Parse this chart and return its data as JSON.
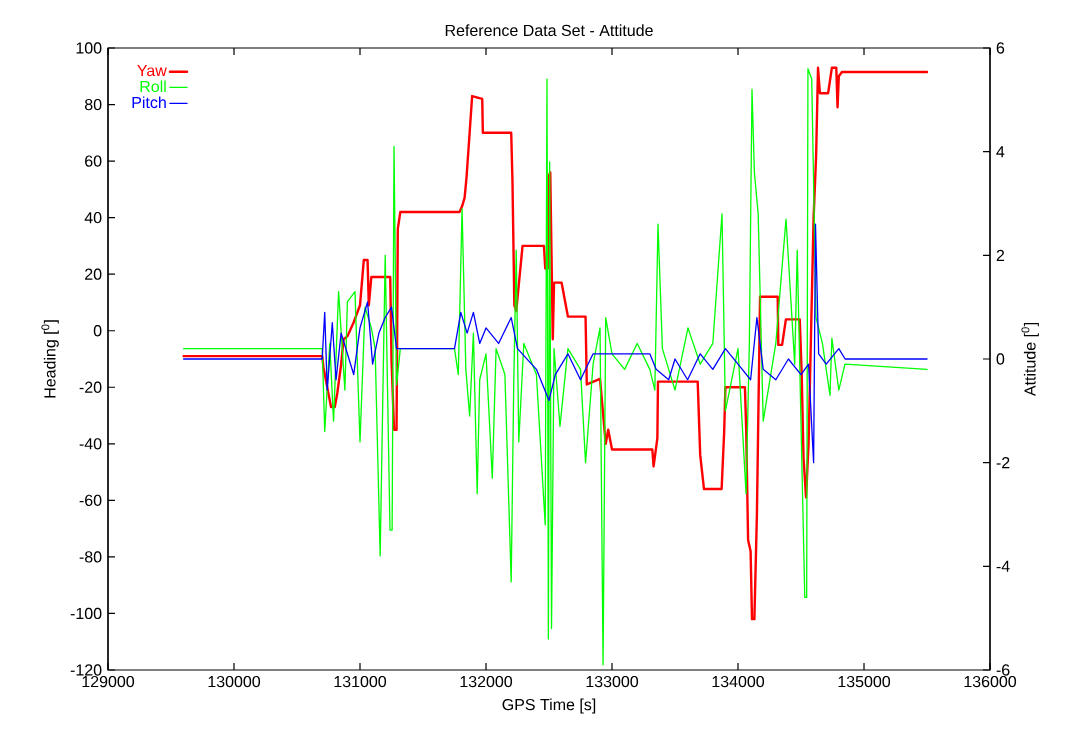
{
  "chart_data": {
    "type": "line",
    "title": "Reference Data Set - Attitude",
    "xlabel": "GPS Time [s]",
    "ylabel": "Heading [$^{0}$]",
    "y2label": "Attitude [$^{0}$]",
    "xlim": [
      129000,
      136000
    ],
    "xticks": [
      129000,
      130000,
      131000,
      132000,
      133000,
      134000,
      135000,
      136000
    ],
    "ylim": [
      -120,
      100
    ],
    "yticks": [
      -120,
      -100,
      -80,
      -60,
      -40,
      -20,
      0,
      20,
      40,
      60,
      80,
      100
    ],
    "y2lim": [
      -6,
      6
    ],
    "y2ticks": [
      -6,
      -4,
      -2,
      0,
      2,
      4,
      6
    ],
    "legend": "top left",
    "series": [
      {
        "name": "Yaw",
        "color": "#ff0000",
        "x": [
          129600,
          130700,
          130710,
          130740,
          130770,
          130800,
          130820,
          130850,
          130870,
          130900,
          130950,
          131000,
          131030,
          131060,
          131070,
          131090,
          131240,
          131250,
          131270,
          131290,
          131300,
          131320,
          131790,
          131810,
          131830,
          131845,
          131870,
          131890,
          131970,
          131975,
          132200,
          132210,
          132225,
          132240,
          132290,
          132460,
          132470,
          132490,
          132500,
          132510,
          132530,
          132540,
          132600,
          132650,
          132790,
          132800,
          132905,
          132950,
          132970,
          133000,
          133320,
          133330,
          133360,
          133365,
          133680,
          133700,
          133730,
          133870,
          133890,
          133900,
          134055,
          134065,
          134080,
          134100,
          134111,
          134130,
          134150,
          134175,
          134315,
          134320,
          134350,
          134380,
          134490,
          134505,
          134520,
          134540,
          134560,
          134600,
          134620,
          134635,
          134650,
          134715,
          134745,
          134780,
          134790,
          134800,
          134825,
          135500
        ],
        "values": [
          -9,
          -9,
          -13,
          -20,
          -27,
          -27,
          -22,
          -12,
          -3,
          -2,
          3,
          9,
          25,
          25,
          9,
          19,
          19,
          -10,
          -35,
          -35,
          36,
          42,
          42,
          44,
          47,
          54,
          70,
          83,
          82,
          70,
          70,
          53,
          9,
          7,
          30,
          30,
          22,
          22,
          55,
          56,
          -3,
          17,
          17,
          5,
          5,
          -19,
          -17,
          -40,
          -35,
          -42,
          -42,
          -48,
          -38,
          -18,
          -18,
          -44,
          -56,
          -56,
          -36,
          -20,
          -20,
          -35,
          -74,
          -78,
          -102,
          -102,
          -65,
          12,
          12,
          -5,
          -5,
          4,
          4,
          -15,
          -45,
          -59,
          -40,
          40,
          62,
          93,
          84,
          84,
          93,
          93,
          79,
          90,
          91.5,
          91.5
        ]
      },
      {
        "name": "Roll",
        "color": "#00ff00",
        "axis": "y2",
        "x": [
          129600,
          130700,
          130720,
          130760,
          130790,
          130830,
          130880,
          130900,
          130960,
          131000,
          131040,
          131090,
          131120,
          131160,
          131200,
          131238,
          131255,
          131270,
          131290,
          131320,
          131750,
          131780,
          131810,
          131840,
          131870,
          131900,
          131930,
          131950,
          132000,
          132050,
          132080,
          132150,
          132200,
          132220,
          132240,
          132260,
          132300,
          132400,
          132470,
          132484,
          132495,
          132505,
          132520,
          132540,
          132587,
          132650,
          132750,
          132790,
          132850,
          132905,
          132929,
          132950,
          133000,
          133100,
          133200,
          133300,
          133340,
          133365,
          133400,
          133500,
          133603,
          133700,
          133800,
          133873,
          133900,
          134000,
          134064,
          134090,
          134111,
          134130,
          134160,
          134200,
          134300,
          134381,
          134450,
          134470,
          134530,
          134545,
          134555,
          134585,
          134619,
          134670,
          134730,
          134745,
          134800,
          134849,
          135500
        ],
        "values": [
          0.2,
          0.2,
          -1.4,
          0.3,
          -1.2,
          1.3,
          -0.6,
          1.1,
          1.3,
          -1.6,
          1.0,
          0.6,
          0.2,
          -3.8,
          2.0,
          -3.3,
          -3.3,
          4.1,
          -0.5,
          0.2,
          0.2,
          -0.3,
          2.9,
          -0.2,
          -1.1,
          0.5,
          -2.6,
          -0.4,
          0.1,
          -2.3,
          0.2,
          -0.3,
          -4.3,
          -0.5,
          2.1,
          -1.6,
          0.3,
          -0.3,
          -3.2,
          5.4,
          -5.4,
          3.8,
          -5.2,
          0.2,
          -1.3,
          0.2,
          -0.2,
          -2.0,
          -0.1,
          0.6,
          -5.9,
          0.8,
          0.1,
          -0.2,
          0.3,
          -0.2,
          -0.6,
          2.6,
          0.2,
          -0.6,
          0.6,
          -0.1,
          0.3,
          2.8,
          -1.0,
          0.2,
          -2.6,
          0.3,
          5.2,
          3.6,
          2.8,
          -1.2,
          0.3,
          2.7,
          -0.1,
          2.1,
          -4.6,
          -4.6,
          5.6,
          5.4,
          0.8,
          0.3,
          -0.7,
          0.4,
          -0.6,
          -0.1,
          -0.2
        ]
      },
      {
        "name": "Pitch",
        "color": "#0000ff",
        "axis": "y2",
        "x": [
          129600,
          130700,
          130720,
          130740,
          130780,
          130810,
          130850,
          130900,
          130950,
          131000,
          131060,
          131100,
          131150,
          131200,
          131250,
          131290,
          131320,
          131750,
          131800,
          131850,
          131900,
          131950,
          132000,
          132100,
          132200,
          132250,
          132400,
          132500,
          132550,
          132650,
          132750,
          132850,
          132950,
          133100,
          133300,
          133350,
          133450,
          133500,
          133600,
          133700,
          133800,
          133900,
          134000,
          134100,
          134150,
          134200,
          134300,
          134400,
          134500,
          134560,
          134600,
          134615,
          134640,
          134700,
          134800,
          134850,
          135500
        ],
        "values": [
          0,
          0,
          0.9,
          -0.6,
          0.7,
          -0.4,
          0.5,
          0.1,
          -0.3,
          0.6,
          1.1,
          -0.1,
          0.5,
          0.8,
          1.0,
          0.2,
          0.2,
          0.2,
          0.9,
          0.5,
          0.9,
          0.3,
          0.6,
          0.3,
          0.8,
          0.2,
          -0.2,
          -0.8,
          -0.3,
          0.1,
          -0.4,
          0.1,
          0.1,
          0.1,
          0.1,
          -0.2,
          -0.4,
          0.0,
          -0.4,
          0.1,
          -0.2,
          0.2,
          -0.1,
          -0.4,
          0.8,
          -0.2,
          -0.4,
          0.0,
          -0.3,
          -0.1,
          -2.0,
          2.6,
          0.1,
          -0.1,
          0.2,
          0.0,
          0.0
        ]
      }
    ]
  }
}
